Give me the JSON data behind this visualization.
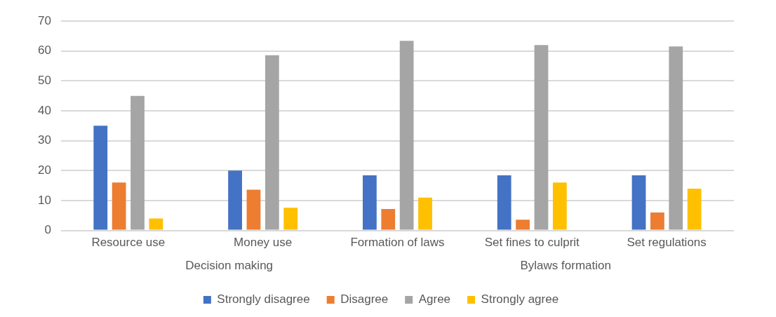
{
  "chart_data": {
    "type": "bar",
    "categories": [
      "Resource use",
      "Money use",
      "Formation of laws",
      "Set fines to culprit",
      "Set regulations"
    ],
    "series": [
      {
        "name": "Strongly disagree",
        "color": "#4472c4",
        "values": [
          35,
          20,
          18.4,
          18.4,
          18.4
        ]
      },
      {
        "name": "Disagree",
        "color": "#ed7d31",
        "values": [
          16,
          13.6,
          7.2,
          3.6,
          6
        ]
      },
      {
        "name": "Agree",
        "color": "#a5a5a5",
        "values": [
          45,
          58.6,
          63.4,
          62,
          61.5
        ]
      },
      {
        "name": "Strongly agree",
        "color": "#ffc000",
        "values": [
          4,
          7.6,
          11,
          16,
          14
        ]
      }
    ],
    "ylim": [
      0,
      70
    ],
    "yticks": [
      0,
      10,
      20,
      30,
      40,
      50,
      60,
      70
    ],
    "grid": "y",
    "legend": "bottom",
    "annotations": [
      "Decision making",
      "Bylaws formation"
    ]
  }
}
